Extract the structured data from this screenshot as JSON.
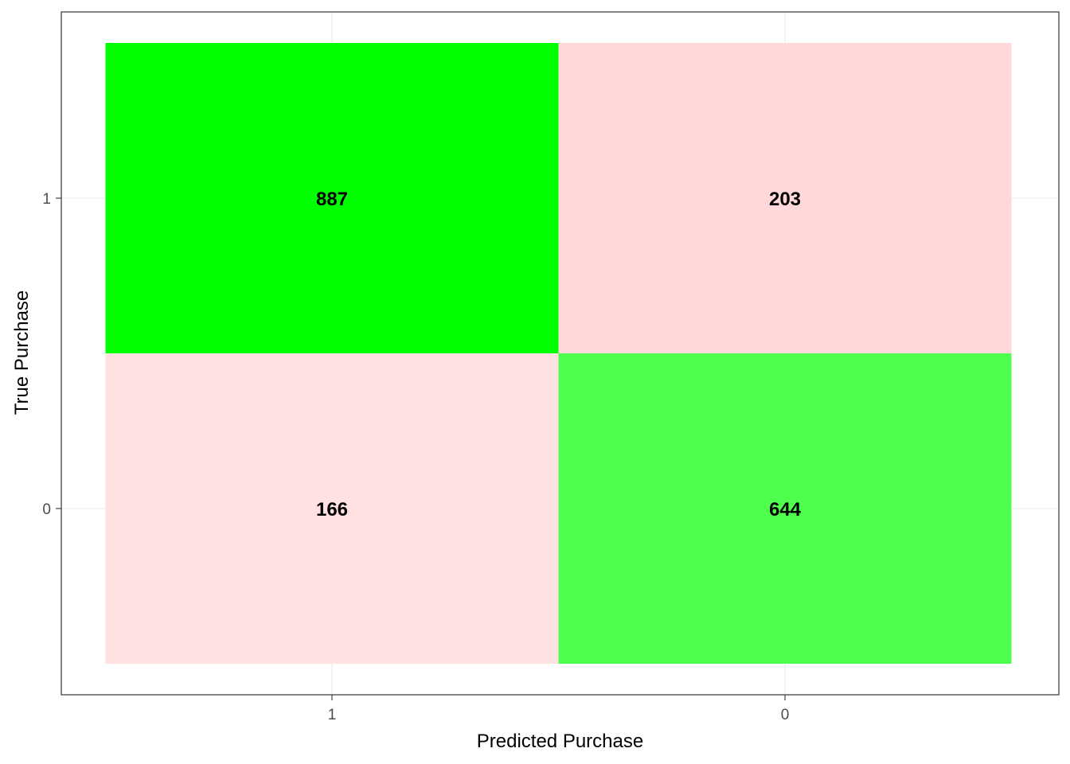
{
  "chart_data": {
    "type": "heatmap",
    "title": "",
    "xlabel": "Predicted Purchase",
    "ylabel": "True Purchase",
    "x_categories": [
      "1",
      "0"
    ],
    "y_categories": [
      "1",
      "0"
    ],
    "cells": [
      {
        "x": "1",
        "y": "1",
        "value": 887,
        "label": "887",
        "color": "#00ff00",
        "outcome": "correct"
      },
      {
        "x": "0",
        "y": "1",
        "value": 203,
        "label": "203",
        "color": "#ffd9d9",
        "outcome": "incorrect"
      },
      {
        "x": "1",
        "y": "0",
        "value": 166,
        "label": "166",
        "color": "#ffe1e1",
        "outcome": "incorrect"
      },
      {
        "x": "0",
        "y": "0",
        "value": 644,
        "label": "644",
        "color": "#4eff4e",
        "outcome": "correct"
      }
    ],
    "grid": true,
    "legend": "none",
    "colors": {
      "gridline": "#ebebeb",
      "panel_border": "#333333",
      "tick_label": "#4d4d4d",
      "tick_mark": "#333333",
      "text": "#000000"
    }
  }
}
